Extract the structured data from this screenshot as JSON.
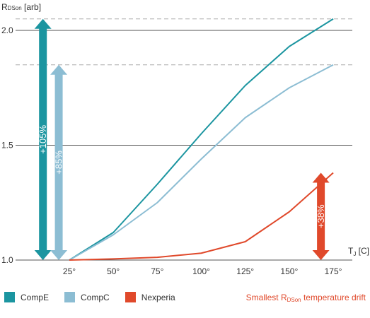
{
  "chart_data": {
    "type": "line",
    "x": [
      25,
      50,
      75,
      100,
      125,
      150,
      175
    ],
    "x_tick_labels": [
      "25°",
      "50°",
      "75°",
      "100°",
      "125°",
      "150°",
      "175°"
    ],
    "series": [
      {
        "name": "CompE",
        "color": "#1b95a0",
        "values": [
          1.0,
          1.12,
          1.33,
          1.55,
          1.76,
          1.93,
          2.05
        ]
      },
      {
        "name": "CompC",
        "color": "#8cbdd3",
        "values": [
          1.0,
          1.11,
          1.25,
          1.44,
          1.62,
          1.75,
          1.85
        ]
      },
      {
        "name": "Nexperia",
        "color": "#e0492b",
        "values": [
          1.0,
          1.005,
          1.012,
          1.03,
          1.08,
          1.21,
          1.38
        ]
      }
    ],
    "ylim": [
      1.0,
      2.08
    ],
    "y_ticks": [
      1.0,
      1.5,
      2.0
    ],
    "y_tick_labels": [
      "1.0",
      "1.5",
      "2.0"
    ],
    "ylabel": {
      "main": "R",
      "sub": "DSon",
      "rest": " [arb]"
    },
    "xlabel": {
      "main": "T",
      "sub": "J",
      "rest": " [C]"
    },
    "grid": true,
    "legend_position": "bottom-left",
    "annotations": [
      {
        "label": "+105%",
        "series": "CompE",
        "color": "#1b95a0",
        "from": 1.0,
        "to": 2.05,
        "at_x": 10
      },
      {
        "label": "+85%",
        "series": "CompC",
        "color": "#8cbdd3",
        "from": 1.0,
        "to": 1.85,
        "at_x": 19
      },
      {
        "label": "+38%",
        "series": "Nexperia",
        "color": "#e0492b",
        "from": 1.0,
        "to": 1.38,
        "at_x": 168
      }
    ],
    "footnote": {
      "main": "Smallest R",
      "sub": "DSon",
      "rest": " temperature drift"
    }
  }
}
